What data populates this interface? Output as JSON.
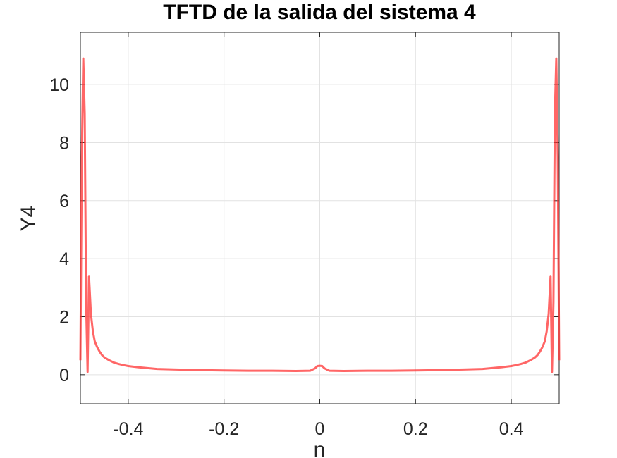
{
  "chart_data": {
    "type": "line",
    "title": "TFTD de la salida del sistema 4",
    "xlabel": "n",
    "ylabel": "Y4",
    "xlim": [
      -0.5,
      0.5
    ],
    "ylim": [
      -1,
      11.8
    ],
    "xticks": [
      -0.4,
      -0.2,
      0,
      0.2,
      0.4
    ],
    "xtick_labels": [
      "-0.4",
      "-0.2",
      "0",
      "0.2",
      "0.4"
    ],
    "yticks": [
      0,
      2,
      4,
      6,
      8,
      10
    ],
    "ytick_labels": [
      "0",
      "2",
      "4",
      "6",
      "8",
      "10"
    ],
    "grid": true,
    "legend": "none",
    "colors": {
      "line": "#ff3333",
      "grid": "#e2e2e2",
      "axis": "#262626"
    },
    "series": [
      {
        "x": [
          -0.5,
          -0.497,
          -0.494,
          -0.491,
          -0.488,
          -0.485,
          -0.482,
          -0.478,
          -0.474,
          -0.47,
          -0.465,
          -0.46,
          -0.455,
          -0.45,
          -0.44,
          -0.43,
          -0.42,
          -0.41,
          -0.4,
          -0.38,
          -0.36,
          -0.34,
          -0.32,
          -0.3,
          -0.25,
          -0.2,
          -0.15,
          -0.1,
          -0.05,
          -0.02,
          -0.01,
          -0.005,
          0,
          0.005,
          0.01,
          0.02,
          0.05,
          0.1,
          0.15,
          0.2,
          0.25,
          0.3,
          0.32,
          0.34,
          0.36,
          0.38,
          0.4,
          0.41,
          0.42,
          0.43,
          0.44,
          0.45,
          0.455,
          0.46,
          0.465,
          0.47,
          0.474,
          0.478,
          0.482,
          0.485,
          0.488,
          0.491,
          0.494,
          0.497,
          0.5
        ],
        "y": [
          0.5,
          7.5,
          10.9,
          9.0,
          2.5,
          0.1,
          3.4,
          2.1,
          1.5,
          1.15,
          0.95,
          0.8,
          0.68,
          0.6,
          0.5,
          0.42,
          0.37,
          0.33,
          0.3,
          0.26,
          0.23,
          0.2,
          0.19,
          0.18,
          0.16,
          0.15,
          0.14,
          0.14,
          0.13,
          0.14,
          0.22,
          0.3,
          0.31,
          0.3,
          0.22,
          0.14,
          0.13,
          0.14,
          0.14,
          0.15,
          0.16,
          0.18,
          0.19,
          0.2,
          0.23,
          0.26,
          0.3,
          0.33,
          0.37,
          0.42,
          0.5,
          0.6,
          0.68,
          0.8,
          0.95,
          1.15,
          1.5,
          2.1,
          3.4,
          0.1,
          2.5,
          9.0,
          10.9,
          7.5,
          0.5
        ]
      }
    ]
  }
}
